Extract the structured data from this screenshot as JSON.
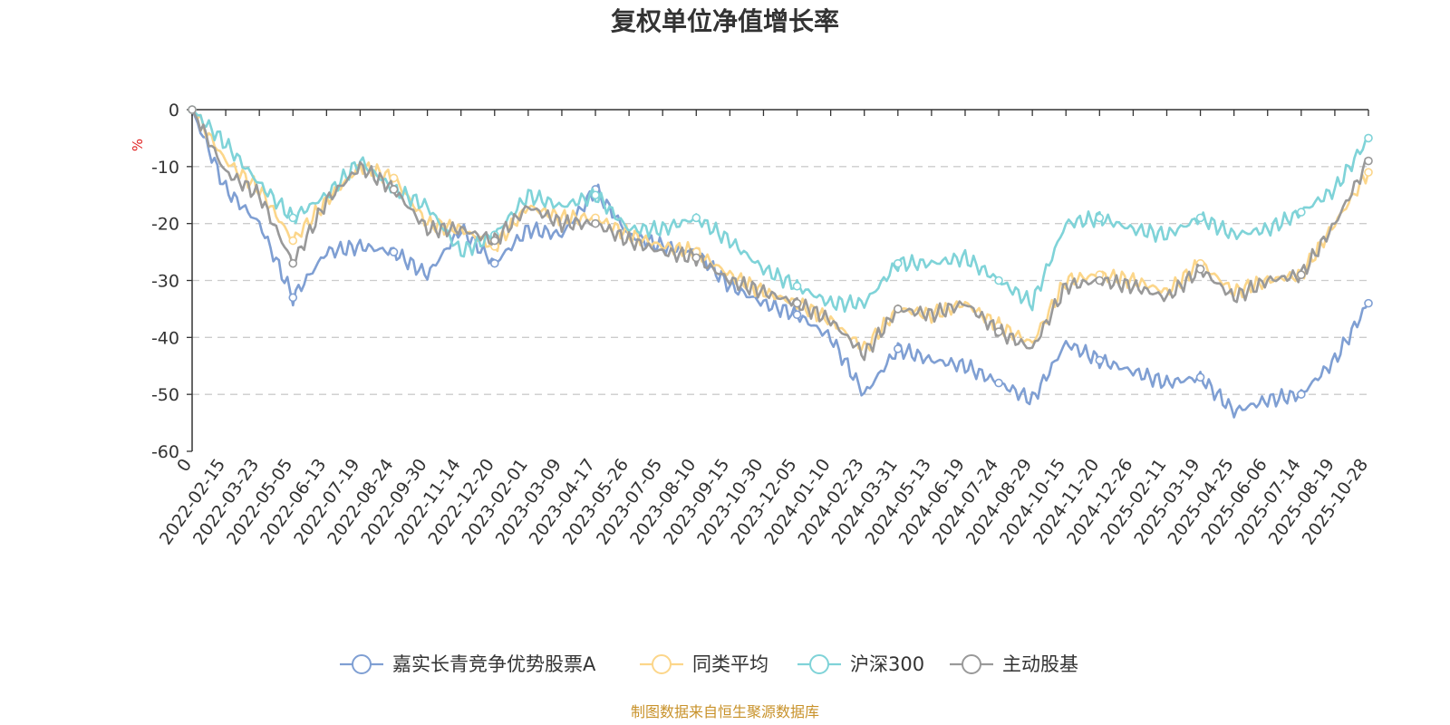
{
  "chart_data": {
    "type": "line",
    "title": "复权单位净值增长率",
    "ylabel": "%",
    "ylim": [
      -60,
      0
    ],
    "yticks": [
      "0",
      "-10",
      "-20",
      "-30",
      "-40",
      "-50",
      "-60"
    ],
    "x_categories": [
      "0",
      "2022-02-15",
      "2022-03-23",
      "2022-05-05",
      "2022-06-13",
      "2022-07-19",
      "2022-08-24",
      "2022-09-30",
      "2022-11-14",
      "2022-12-20",
      "2023-02-01",
      "2023-03-09",
      "2023-04-17",
      "2023-05-26",
      "2023-07-05",
      "2023-08-10",
      "2023-09-15",
      "2023-10-30",
      "2023-12-05",
      "2024-01-10",
      "2024-02-23",
      "2024-03-31",
      "2024-05-13",
      "2024-06-19",
      "2024-07-24",
      "2024-08-29",
      "2024-10-15",
      "2024-11-20",
      "2024-12-26",
      "2025-02-11",
      "2025-03-19",
      "2025-04-25",
      "2025-06-06",
      "2025-07-14",
      "2025-08-19",
      "2025-10-28"
    ],
    "grid": true,
    "legend_position": "bottom",
    "series": [
      {
        "name": "嘉实长青竞争优势股票A",
        "color": "#7f9fd3",
        "values": [
          0,
          -14,
          -20,
          -33,
          -25,
          -24,
          -25,
          -29,
          -21,
          -27,
          -21,
          -22,
          -14,
          -22,
          -24,
          -25,
          -31,
          -34,
          -36,
          -40,
          -50,
          -42,
          -44,
          -45,
          -48,
          -51,
          -41,
          -44,
          -46,
          -48,
          -47,
          -53,
          -51,
          -50,
          -44,
          -34
        ]
      },
      {
        "name": "同类平均",
        "color": "#fcd68a",
        "values": [
          0,
          -9,
          -14,
          -23,
          -16,
          -10,
          -12,
          -20,
          -21,
          -24,
          -17,
          -19,
          -19,
          -22,
          -24,
          -25,
          -29,
          -32,
          -34,
          -37,
          -42,
          -35,
          -36,
          -34,
          -38,
          -41,
          -30,
          -29,
          -30,
          -32,
          -27,
          -32,
          -30,
          -29,
          -20,
          -11
        ]
      },
      {
        "name": "沪深300",
        "color": "#7fd3d8",
        "values": [
          0,
          -6,
          -13,
          -19,
          -15,
          -9,
          -14,
          -17,
          -25,
          -22,
          -15,
          -17,
          -15,
          -21,
          -21,
          -19,
          -23,
          -28,
          -31,
          -34,
          -34,
          -27,
          -27,
          -26,
          -30,
          -34,
          -20,
          -19,
          -21,
          -22,
          -19,
          -22,
          -21,
          -18,
          -14,
          -5
        ]
      },
      {
        "name": "主动股基",
        "color": "#999999",
        "values": [
          0,
          -11,
          -15,
          -27,
          -16,
          -10,
          -14,
          -21,
          -21,
          -23,
          -17,
          -20,
          -20,
          -23,
          -25,
          -26,
          -30,
          -32,
          -34,
          -37,
          -43,
          -35,
          -36,
          -34,
          -39,
          -42,
          -31,
          -30,
          -31,
          -33,
          -28,
          -33,
          -30,
          -29,
          -20,
          -9
        ]
      }
    ],
    "source": "制图数据来自恒生聚源数据库"
  }
}
